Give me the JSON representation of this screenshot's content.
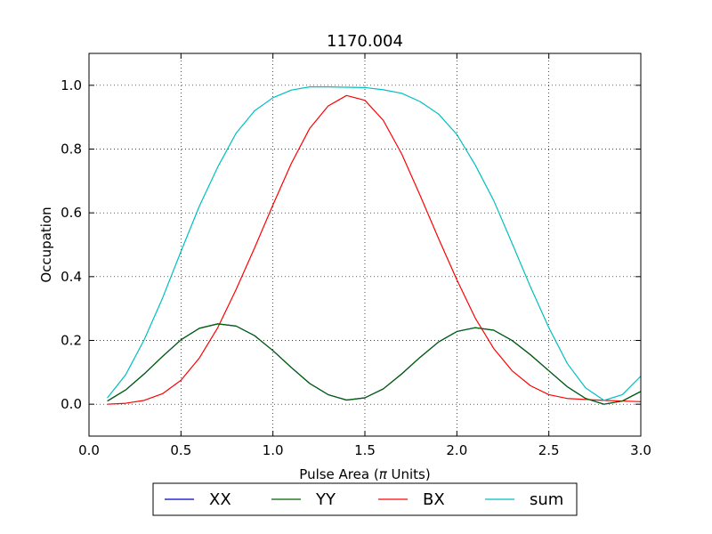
{
  "chart_data": {
    "type": "line",
    "title": "1170.004",
    "xlabel_prefix": "Pulse Area (",
    "xlabel_symbol": "π",
    "xlabel_suffix": " Units)",
    "ylabel": "Occupation",
    "xlim": [
      0.0,
      3.0
    ],
    "ylim": [
      -0.1,
      1.1
    ],
    "xticks": [
      "0.0",
      "0.5",
      "1.0",
      "1.5",
      "2.0",
      "2.5",
      "3.0"
    ],
    "yticks": [
      "0.0",
      "0.2",
      "0.4",
      "0.6",
      "0.8",
      "1.0"
    ],
    "grid": true,
    "legend_position": "below-center",
    "x": [
      0.1,
      0.2,
      0.3,
      0.4,
      0.5,
      0.6,
      0.7,
      0.8,
      0.9,
      1.0,
      1.1,
      1.2,
      1.3,
      1.4,
      1.5,
      1.6,
      1.7,
      1.8,
      1.9,
      2.0,
      2.1,
      2.2,
      2.3,
      2.4,
      2.5,
      2.6,
      2.7,
      2.8,
      2.9,
      3.0
    ],
    "series": [
      {
        "name": "XX",
        "color": "#0000cc",
        "values": [
          0.01,
          0.045,
          0.095,
          0.15,
          0.202,
          0.238,
          0.252,
          0.245,
          0.215,
          0.168,
          0.115,
          0.065,
          0.03,
          0.013,
          0.02,
          0.048,
          0.095,
          0.147,
          0.195,
          0.228,
          0.24,
          0.232,
          0.2,
          0.155,
          0.105,
          0.055,
          0.018,
          0.0,
          0.01,
          0.04
        ]
      },
      {
        "name": "YY",
        "color": "#006400",
        "values": [
          0.01,
          0.045,
          0.095,
          0.15,
          0.202,
          0.238,
          0.252,
          0.245,
          0.215,
          0.168,
          0.115,
          0.065,
          0.03,
          0.013,
          0.02,
          0.048,
          0.095,
          0.147,
          0.195,
          0.228,
          0.24,
          0.232,
          0.2,
          0.155,
          0.105,
          0.055,
          0.018,
          0.0,
          0.01,
          0.04
        ]
      },
      {
        "name": "BX",
        "color": "#ff0000",
        "values": [
          0.0,
          0.003,
          0.012,
          0.033,
          0.075,
          0.145,
          0.24,
          0.36,
          0.49,
          0.625,
          0.755,
          0.865,
          0.935,
          0.968,
          0.953,
          0.89,
          0.785,
          0.655,
          0.52,
          0.39,
          0.27,
          0.175,
          0.105,
          0.058,
          0.03,
          0.018,
          0.015,
          0.012,
          0.01,
          0.008
        ]
      },
      {
        "name": "sum",
        "color": "#00bfbf",
        "values": [
          0.02,
          0.093,
          0.202,
          0.333,
          0.479,
          0.621,
          0.744,
          0.85,
          0.92,
          0.961,
          0.985,
          0.995,
          0.995,
          0.994,
          0.993,
          0.986,
          0.975,
          0.949,
          0.91,
          0.846,
          0.75,
          0.639,
          0.505,
          0.368,
          0.24,
          0.128,
          0.051,
          0.012,
          0.03,
          0.088
        ]
      }
    ]
  }
}
